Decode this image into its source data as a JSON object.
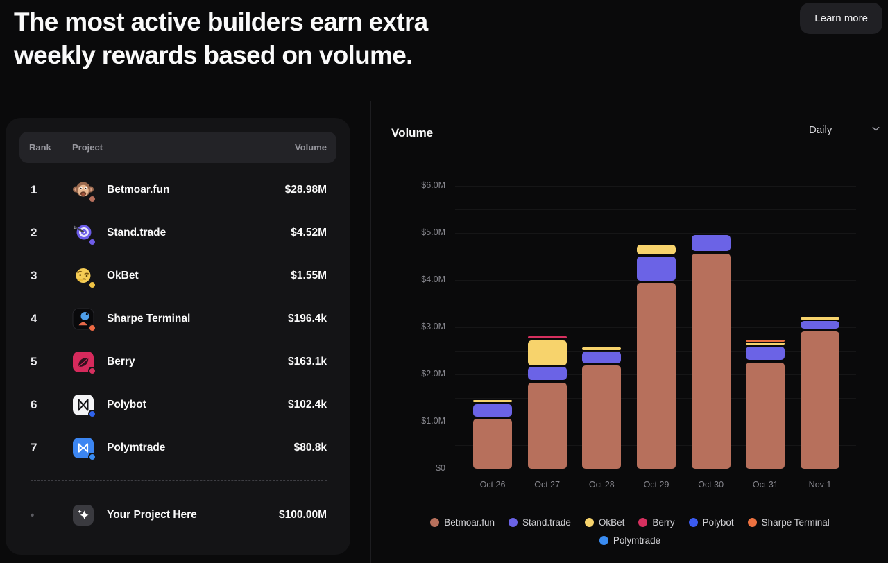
{
  "header": {
    "title_line1": "The most active builders earn extra",
    "title_line2": "weekly rewards based on volume.",
    "learn_more_label": "Learn more"
  },
  "leaderboard": {
    "columns": {
      "rank": "Rank",
      "project": "Project",
      "volume": "Volume"
    },
    "rows": [
      {
        "rank": "1",
        "name": "Betmoar.fun",
        "volume": "$28.98M",
        "icon": "monkey-icon",
        "badge_color": "#b7705c"
      },
      {
        "rank": "2",
        "name": "Stand.trade",
        "volume": "$4.52M",
        "icon": "dart-target-icon",
        "badge_color": "#6e5ce8"
      },
      {
        "rank": "3",
        "name": "OkBet",
        "volume": "$1.55M",
        "icon": "thinking-face-icon",
        "badge_color": "#f0c344"
      },
      {
        "rank": "4",
        "name": "Sharpe Terminal",
        "volume": "$196.4k",
        "icon": "sharpe-terminal-icon",
        "badge_color": "#ee6a44"
      },
      {
        "rank": "5",
        "name": "Berry",
        "volume": "$163.1k",
        "icon": "berry-icon",
        "badge_color": "#d6305f"
      },
      {
        "rank": "6",
        "name": "Polybot",
        "volume": "$102.4k",
        "icon": "polybot-icon",
        "badge_color": "#2f63ee"
      },
      {
        "rank": "7",
        "name": "Polymtrade",
        "volume": "$80.8k",
        "icon": "polymtrade-icon",
        "badge_color": "#3a8cf2"
      }
    ],
    "your_project_row": {
      "rank": "•",
      "name": "Your Project Here",
      "volume": "$100.00M",
      "icon": "sparkles-icon"
    }
  },
  "chart_panel": {
    "title": "Volume",
    "range_selector": {
      "value": "Daily",
      "icon": "chevron-down-icon"
    }
  },
  "chart_data": {
    "type": "bar",
    "stacked": true,
    "title": "Volume",
    "unit": "$M",
    "categories": [
      "Oct 26",
      "Oct 27",
      "Oct 28",
      "Oct 29",
      "Oct 30",
      "Oct 31",
      "Nov 1"
    ],
    "series": [
      {
        "name": "Betmoar.fun",
        "color": "#b7705c",
        "values": [
          1.09,
          1.86,
          2.22,
          3.97,
          4.6,
          2.29,
          2.95
        ]
      },
      {
        "name": "Stand.trade",
        "color": "#6b63e6",
        "values": [
          0.3,
          0.32,
          0.28,
          0.55,
          0.38,
          0.32,
          0.2
        ]
      },
      {
        "name": "OkBet",
        "color": "#f7d36c",
        "values": [
          0.07,
          0.56,
          0.07,
          0.25,
          0,
          0.06,
          0.05
        ]
      },
      {
        "name": "Berry",
        "color": "#d6305f",
        "values": [
          0,
          0.07,
          0,
          0,
          0,
          0,
          0
        ]
      },
      {
        "name": "Polybot",
        "color": "#3b5bf0",
        "values": [
          0,
          0,
          0,
          0,
          0,
          0,
          0
        ]
      },
      {
        "name": "Sharpe Terminal",
        "color": "#ec7140",
        "values": [
          0,
          0,
          0,
          0,
          0,
          0.07,
          0
        ]
      },
      {
        "name": "Polymtrade",
        "color": "#3a8cf2",
        "values": [
          0,
          0,
          0,
          0,
          0,
          0,
          0
        ]
      }
    ],
    "y_ticks": [
      {
        "label": "$6.0M",
        "value": 6
      },
      {
        "label": "$5.0M",
        "value": 5
      },
      {
        "label": "$4.0M",
        "value": 4
      },
      {
        "label": "$3.0M",
        "value": 3
      },
      {
        "label": "$2.0M",
        "value": 2
      },
      {
        "label": "$1.0M",
        "value": 1
      },
      {
        "label": "$0",
        "value": 0
      }
    ],
    "ylim": [
      0,
      6
    ],
    "grid_step": 0.5,
    "grid": true,
    "legend_position": "bottom"
  }
}
